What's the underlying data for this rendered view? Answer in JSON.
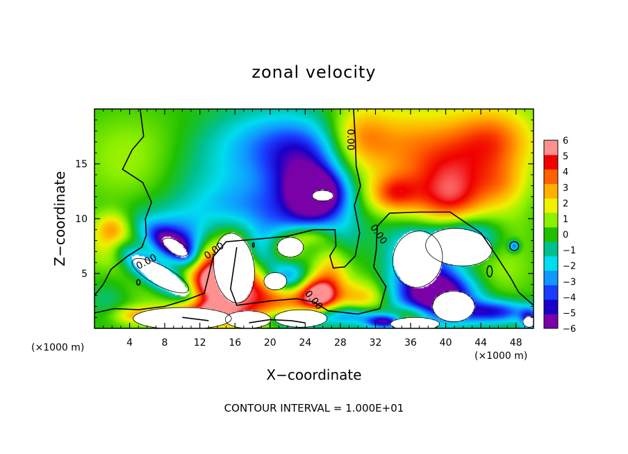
{
  "chart_data": {
    "type": "heatmap",
    "title": "zonal velocity",
    "xlabel": "X−coordinate",
    "ylabel": "Z−coordinate",
    "x_unit": "(×1000 m)",
    "footer": "CONTOUR INTERVAL = 1.000E+01",
    "xlim": [
      0,
      50
    ],
    "ylim": [
      0,
      20
    ],
    "x_ticks": [
      4,
      8,
      12,
      16,
      20,
      24,
      28,
      32,
      36,
      40,
      44,
      48
    ],
    "x_tick_labels": [
      "4",
      "8",
      "12",
      "16",
      "20",
      "24",
      "28",
      "32",
      "36",
      "40",
      "44",
      "48"
    ],
    "y_ticks": [
      5,
      10,
      15
    ],
    "y_tick_labels": [
      "5",
      "10",
      "15"
    ],
    "colorbar": {
      "min": -6,
      "max": 6,
      "levels": [
        -6,
        -5,
        -4,
        -3,
        -2,
        -1,
        0,
        1,
        2,
        3,
        4,
        5,
        6
      ],
      "labels": [
        "−6",
        "−5",
        "−4",
        "−3",
        "−2",
        "−1",
        "0",
        "1",
        "2",
        "3",
        "4",
        "5",
        "6"
      ],
      "colors": [
        "#7a00a8",
        "#1800c8",
        "#1a3cff",
        "#1098ff",
        "#00dcf0",
        "#00c090",
        "#20c000",
        "#8cf000",
        "#f0f000",
        "#ffb000",
        "#ff6000",
        "#f00000",
        "#ff9090"
      ]
    },
    "contour_labels": [
      {
        "text": "0.00",
        "x": 5.9,
        "y": 6.1,
        "rotate": -28
      },
      {
        "text": "0.00",
        "x": 13.6,
        "y": 7.1,
        "rotate": -35
      },
      {
        "text": "0.00",
        "x": 29.2,
        "y": 17.2,
        "rotate": 90
      },
      {
        "text": "0.00",
        "x": 32.4,
        "y": 8.6,
        "rotate": 55
      },
      {
        "text": "0.00",
        "x": 25.0,
        "y": 2.6,
        "rotate": 50
      }
    ],
    "features": [
      {
        "v": 1.0,
        "x": 14,
        "y": 3,
        "rx": 14,
        "ry": 5
      },
      {
        "v": 0.3,
        "x": 8,
        "y": 18,
        "rx": 10,
        "ry": 3
      },
      {
        "v": 1.2,
        "x": 4,
        "y": 15,
        "rx": 6,
        "ry": 4
      },
      {
        "v": -1.8,
        "x": 19,
        "y": 14,
        "rx": 10,
        "ry": 5
      },
      {
        "v": -2.2,
        "x": 21,
        "y": 17,
        "rx": 7,
        "ry": 3
      },
      {
        "v": -2.5,
        "x": 17,
        "y": 10.5,
        "rx": 7,
        "ry": 2.5
      },
      {
        "v": -6,
        "x": 25.5,
        "y": 12.2,
        "rx": 3,
        "ry": 2
      },
      {
        "v": -3.5,
        "x": 24,
        "y": 14,
        "rx": 4,
        "ry": 3.5
      },
      {
        "v": -1.8,
        "x": 24.5,
        "y": 9,
        "rx": 4.5,
        "ry": 2
      },
      {
        "v": -0.6,
        "x": 28.5,
        "y": 8.5,
        "rx": 2,
        "ry": 3
      },
      {
        "v": 2.5,
        "x": 30,
        "y": 17.5,
        "rx": 3.5,
        "ry": 3
      },
      {
        "v": 3.2,
        "x": 36,
        "y": 16.5,
        "rx": 7,
        "ry": 4
      },
      {
        "v": 3.8,
        "x": 45.5,
        "y": 17,
        "rx": 5,
        "ry": 3.5
      },
      {
        "v": 5,
        "x": 40.5,
        "y": 11.5,
        "rx": 4.5,
        "ry": 4
      },
      {
        "v": 3.5,
        "x": 34,
        "y": 12.2,
        "rx": 3,
        "ry": 1.8
      },
      {
        "v": 1.2,
        "x": 35,
        "y": 5,
        "rx": 4,
        "ry": 2.5
      },
      {
        "v": 1.0,
        "x": 46,
        "y": 5,
        "rx": 4,
        "ry": 2.5
      },
      {
        "v": 1.6,
        "x": 46.5,
        "y": 13,
        "rx": 3,
        "ry": 2
      },
      {
        "v": 0.8,
        "x": 47.5,
        "y": 9,
        "rx": 3,
        "ry": 3
      },
      {
        "v": 1.5,
        "x": 1.5,
        "y": 7.5,
        "rx": 2.5,
        "ry": 2
      },
      {
        "v": 2.6,
        "x": 2,
        "y": 9,
        "rx": 2,
        "ry": 1.5
      },
      {
        "v": -1.2,
        "x": 1.5,
        "y": 2.5,
        "rx": 2.5,
        "ry": 2
      },
      {
        "v": -5,
        "x": 7,
        "y": 5,
        "rx": 4.5,
        "ry": 1.2,
        "rot": -28
      },
      {
        "v": -5,
        "x": 9,
        "y": 7.5,
        "rx": 3,
        "ry": 1.2,
        "rot": -25
      },
      {
        "v": -3.5,
        "x": 10.5,
        "y": 8,
        "rx": 5,
        "ry": 2,
        "rot": -15
      },
      {
        "v": 3.6,
        "x": 22,
        "y": 3,
        "rx": 6,
        "ry": 2
      },
      {
        "v": 4.5,
        "x": 25.5,
        "y": 3,
        "rx": 2,
        "ry": 1.5
      },
      {
        "v": 2.8,
        "x": 21.5,
        "y": 7.5,
        "rx": 2.5,
        "ry": 1.5
      },
      {
        "v": 3,
        "x": 24.5,
        "y": 8.5,
        "rx": 2.5,
        "ry": 1
      },
      {
        "v": 2.2,
        "x": 27,
        "y": 5.5,
        "rx": 2,
        "ry": 2.5
      },
      {
        "v": 4.5,
        "x": 12.8,
        "y": 5,
        "rx": 2,
        "ry": 3
      },
      {
        "v": 5,
        "x": 16,
        "y": 5.5,
        "rx": 3.5,
        "ry": 4
      },
      {
        "v": 4,
        "x": 13,
        "y": 1.5,
        "rx": 4,
        "ry": 1
      },
      {
        "v": -5,
        "x": 22,
        "y": 4.5,
        "rx": 2.5,
        "ry": 1.5
      },
      {
        "v": -4,
        "x": 19,
        "y": 7,
        "rx": 2.5,
        "ry": 2
      },
      {
        "v": 3,
        "x": 31,
        "y": 2.5,
        "rx": 3,
        "ry": 1.8
      },
      {
        "v": 3,
        "x": 36,
        "y": 1.2,
        "rx": 2.5,
        "ry": 1
      },
      {
        "v": 2.6,
        "x": 5,
        "y": 1.2,
        "rx": 3,
        "ry": 0.8
      },
      {
        "v": -5,
        "x": 37,
        "y": 5.8,
        "rx": 3.8,
        "ry": 3.5
      },
      {
        "v": -4,
        "x": 40,
        "y": 3.2,
        "rx": 3.5,
        "ry": 2
      },
      {
        "v": -4.5,
        "x": 42,
        "y": 8.5,
        "rx": 4,
        "ry": 2
      },
      {
        "v": -4.5,
        "x": 45.5,
        "y": 1.5,
        "rx": 4,
        "ry": 1
      },
      {
        "v": -4,
        "x": 29,
        "y": 1.2,
        "rx": 4,
        "ry": 1
      },
      {
        "v": -4,
        "x": 23,
        "y": 0.8,
        "rx": 3,
        "ry": 0.8
      },
      {
        "v": -5,
        "x": 33,
        "y": 0.6,
        "rx": 2,
        "ry": 0.6
      },
      {
        "v": -4,
        "x": 49.5,
        "y": 0.8,
        "rx": 1,
        "ry": 1
      },
      {
        "v": -4,
        "x": 47.8,
        "y": 7.5,
        "rx": 0.6,
        "ry": 0.5
      },
      {
        "v": -1.5,
        "x": 39,
        "y": 2,
        "rx": 5,
        "ry": 2
      },
      {
        "v": -2,
        "x": 36.5,
        "y": 3,
        "rx": 6,
        "ry": 2.5
      }
    ],
    "saturated_regions": [
      {
        "x": 7.5,
        "y": 4.8,
        "rx": 3.6,
        "ry": 0.9,
        "rot": -28
      },
      {
        "x": 9.2,
        "y": 7.4,
        "rx": 1.6,
        "ry": 0.6,
        "rot": -30
      },
      {
        "x": 26,
        "y": 12.1,
        "rx": 1.2,
        "ry": 0.5,
        "rot": 0
      },
      {
        "x": 15.9,
        "y": 5.5,
        "rx": 2.3,
        "ry": 3.2,
        "rot": 8
      },
      {
        "x": 22.3,
        "y": 7.4,
        "rx": 1.5,
        "ry": 0.9,
        "rot": 0
      },
      {
        "x": 20.6,
        "y": 4.3,
        "rx": 1.3,
        "ry": 0.8,
        "rot": 0
      },
      {
        "x": 36.8,
        "y": 6.3,
        "rx": 2.8,
        "ry": 2.6,
        "rot": -15
      },
      {
        "x": 41.5,
        "y": 7.4,
        "rx": 3.8,
        "ry": 1.7,
        "rot": -5
      },
      {
        "x": 40.9,
        "y": 2.0,
        "rx": 2.4,
        "ry": 1.4,
        "rot": 0
      },
      {
        "x": 10,
        "y": 0.9,
        "rx": 5.6,
        "ry": 1.0,
        "rot": 0
      },
      {
        "x": 17.5,
        "y": 0.8,
        "rx": 2.6,
        "ry": 0.8,
        "rot": 0
      },
      {
        "x": 23.5,
        "y": 0.9,
        "rx": 3.0,
        "ry": 0.8,
        "rot": 0
      },
      {
        "x": 36.5,
        "y": 0.4,
        "rx": 2.8,
        "ry": 0.6,
        "rot": 0
      },
      {
        "x": 49.5,
        "y": 0.6,
        "rx": 0.7,
        "ry": 0.5,
        "rot": 0
      }
    ],
    "zero_contours": [
      [
        [
          5.2,
          20
        ],
        [
          5.6,
          17.5
        ],
        [
          4.3,
          16.3
        ],
        [
          3.2,
          14.5
        ],
        [
          5.5,
          13.3
        ],
        [
          6.5,
          11.5
        ],
        [
          5.8,
          10
        ],
        [
          5.9,
          8.5
        ],
        [
          5.4,
          7.4
        ],
        [
          3.8,
          6.6
        ],
        [
          1.9,
          5.4
        ],
        [
          1.0,
          4.0
        ],
        [
          0,
          3.0
        ]
      ],
      [
        [
          0,
          1.4
        ],
        [
          2.2,
          1.8
        ],
        [
          5,
          1.7
        ],
        [
          8,
          2.0
        ],
        [
          10.5,
          2.6
        ],
        [
          12.5,
          3.2
        ],
        [
          13,
          4.8
        ],
        [
          13.5,
          6.5
        ],
        [
          15,
          7.9
        ],
        [
          18,
          8.1
        ],
        [
          22,
          8.4
        ],
        [
          25,
          9.0
        ],
        [
          27.4,
          9.0
        ],
        [
          27.5,
          7.5
        ],
        [
          26.8,
          6.6
        ],
        [
          27.2,
          5.5
        ],
        [
          28.5,
          5.6
        ],
        [
          29.7,
          6.6
        ],
        [
          30.2,
          8.7
        ],
        [
          29.6,
          11.2
        ],
        [
          30.3,
          13
        ],
        [
          29.8,
          14.8
        ],
        [
          29.7,
          17.4
        ],
        [
          29.5,
          20
        ]
      ],
      [
        [
          16.2,
          7.4
        ],
        [
          15.5,
          3.6
        ],
        [
          16.2,
          2.1
        ],
        [
          20,
          2.5
        ],
        [
          23,
          2.7
        ],
        [
          25,
          2.4
        ],
        [
          26.6,
          1.6
        ],
        [
          30,
          1.3
        ],
        [
          32.5,
          1.8
        ],
        [
          33.2,
          3.8
        ],
        [
          31.8,
          5.6
        ],
        [
          32.1,
          7.2
        ],
        [
          32.2,
          9.3
        ],
        [
          33.6,
          10.5
        ],
        [
          37,
          10.6
        ],
        [
          40.5,
          10.6
        ],
        [
          44,
          8.7
        ],
        [
          45.7,
          6.7
        ],
        [
          47.4,
          4.6
        ],
        [
          48.3,
          3.3
        ],
        [
          50,
          2.1
        ]
      ],
      [
        [
          17.6,
          0.5
        ],
        [
          20,
          0.8
        ],
        [
          22.4,
          0.7
        ],
        [
          24,
          0.5
        ]
      ],
      [
        [
          10,
          1.0
        ],
        [
          13,
          0.7
        ]
      ]
    ],
    "small_contours": [
      {
        "x": 47.8,
        "y": 7.5,
        "rx": 0.5,
        "ry": 0.4
      },
      {
        "x": 45,
        "y": 5.2,
        "rx": 0.3,
        "ry": 0.5
      },
      {
        "x": 5.0,
        "y": 4.2,
        "rx": 0.2,
        "ry": 0.25
      },
      {
        "x": 18.1,
        "y": 7.6,
        "rx": 0.1,
        "ry": 0.2
      }
    ]
  }
}
